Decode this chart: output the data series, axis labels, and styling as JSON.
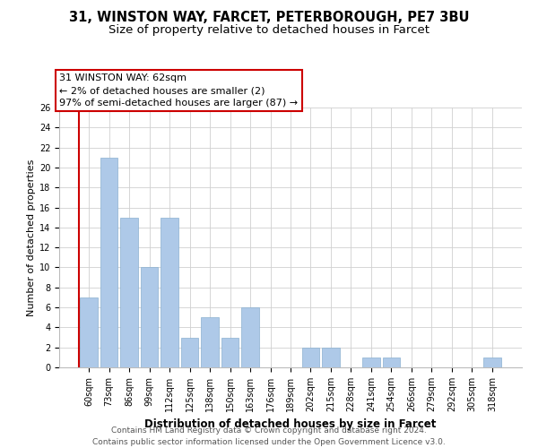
{
  "title_line1": "31, WINSTON WAY, FARCET, PETERBOROUGH, PE7 3BU",
  "title_line2": "Size of property relative to detached houses in Farcet",
  "xlabel": "Distribution of detached houses by size in Farcet",
  "ylabel": "Number of detached properties",
  "bar_labels": [
    "60sqm",
    "73sqm",
    "86sqm",
    "99sqm",
    "112sqm",
    "125sqm",
    "138sqm",
    "150sqm",
    "163sqm",
    "176sqm",
    "189sqm",
    "202sqm",
    "215sqm",
    "228sqm",
    "241sqm",
    "254sqm",
    "266sqm",
    "279sqm",
    "292sqm",
    "305sqm",
    "318sqm"
  ],
  "bar_values": [
    7,
    21,
    15,
    10,
    15,
    3,
    5,
    3,
    6,
    0,
    0,
    2,
    2,
    0,
    1,
    1,
    0,
    0,
    0,
    0,
    1
  ],
  "bar_color": "#aec9e8",
  "annotation_box_edge_color": "#cc0000",
  "annotation_box_bg": "#ffffff",
  "annotation_line1": "31 WINSTON WAY: 62sqm",
  "annotation_line2": "← 2% of detached houses are smaller (2)",
  "annotation_line3": "97% of semi-detached houses are larger (87) →",
  "ylim_max": 26,
  "yticks": [
    0,
    2,
    4,
    6,
    8,
    10,
    12,
    14,
    16,
    18,
    20,
    22,
    24,
    26
  ],
  "footer_line1": "Contains HM Land Registry data © Crown copyright and database right 2024.",
  "footer_line2": "Contains public sector information licensed under the Open Government Licence v3.0.",
  "background_color": "#ffffff",
  "grid_color": "#d0d0d0",
  "title_fontsize": 10.5,
  "subtitle_fontsize": 9.5,
  "xlabel_fontsize": 8.5,
  "ylabel_fontsize": 8,
  "tick_fontsize": 7,
  "annotation_fontsize": 8,
  "footer_fontsize": 6.5,
  "red_color": "#cc0000"
}
